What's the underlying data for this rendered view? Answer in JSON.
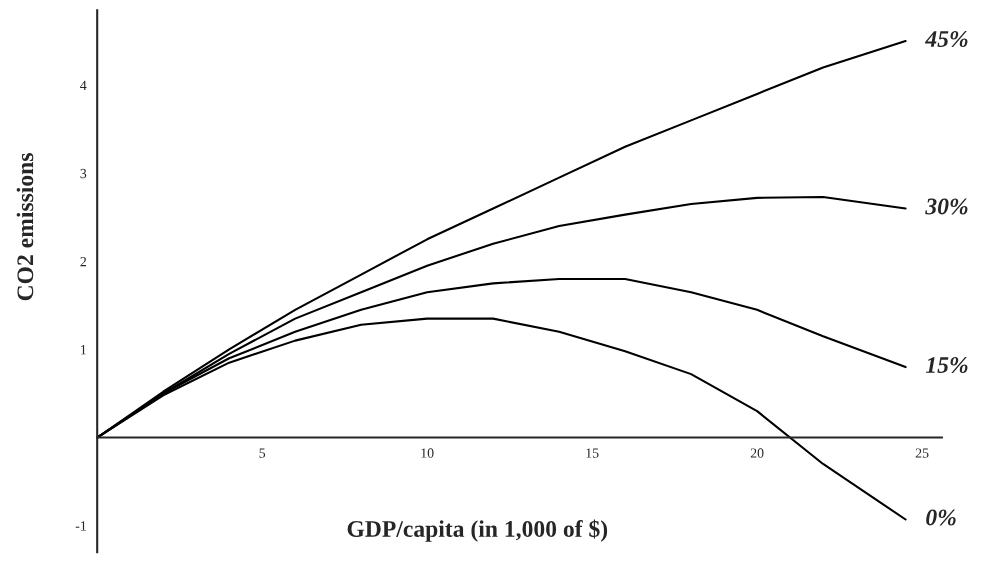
{
  "chart_data": {
    "type": "line",
    "xlabel": "GDP/capita (in 1,000 of $)",
    "ylabel": "CO2 emissions",
    "x": [
      0,
      2,
      4,
      6,
      8,
      10,
      12,
      14,
      16,
      18,
      20,
      22,
      24.5
    ],
    "series": [
      {
        "name": "45%",
        "color": "#000000",
        "values": [
          0,
          0.52,
          1.0,
          1.45,
          1.85,
          2.25,
          2.6,
          2.95,
          3.3,
          3.6,
          3.9,
          4.2,
          4.5
        ]
      },
      {
        "name": "30%",
        "color": "#000000",
        "values": [
          0,
          0.5,
          0.95,
          1.35,
          1.65,
          1.95,
          2.2,
          2.4,
          2.53,
          2.65,
          2.72,
          2.73,
          2.6
        ]
      },
      {
        "name": "15%",
        "color": "#000000",
        "values": [
          0,
          0.5,
          0.9,
          1.2,
          1.45,
          1.65,
          1.75,
          1.8,
          1.8,
          1.65,
          1.45,
          1.15,
          0.8
        ]
      },
      {
        "name": "0%",
        "color": "#000000",
        "values": [
          0,
          0.48,
          0.85,
          1.1,
          1.28,
          1.35,
          1.35,
          1.2,
          0.98,
          0.72,
          0.3,
          -0.3,
          -0.93
        ]
      }
    ],
    "xlim": [
      0,
      25.6
    ],
    "ylim": [
      -1.3,
      4.85
    ],
    "xticks": [
      5,
      10,
      15,
      20,
      25
    ],
    "yticks": [
      -1,
      1,
      2,
      3,
      4
    ],
    "grid": false,
    "legend": false,
    "marker": "none",
    "line_style": "solid"
  }
}
